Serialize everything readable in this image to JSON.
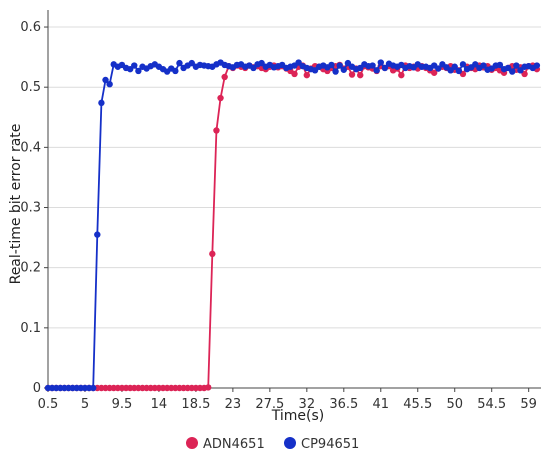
{
  "chart_data": {
    "type": "line",
    "xlabel": "Time(s)",
    "ylabel": "Real-time bit error rate",
    "xlim": [
      0.5,
      60.5
    ],
    "ylim": [
      0,
      0.62
    ],
    "x_tick_labels": [
      "0.5",
      "5",
      "9.5",
      "14",
      "18.5",
      "23",
      "27.5",
      "32",
      "36.5",
      "41",
      "45.5",
      "50",
      "54.5",
      "59"
    ],
    "y_tick_labels": [
      "0",
      "0.1",
      "0.2",
      "0.3",
      "0.4",
      "0.5",
      "0.6"
    ],
    "legend": "bottom",
    "grid": "horizontal",
    "series": [
      {
        "name": "ADN4651",
        "color": "#dc2456",
        "x": [
          0.5,
          1.0,
          1.5,
          2.0,
          2.5,
          3.0,
          3.5,
          4.0,
          4.5,
          5.0,
          5.5,
          6.0,
          6.5,
          7.0,
          7.5,
          8.0,
          8.5,
          9.0,
          9.5,
          10.0,
          10.5,
          11.0,
          11.5,
          12.0,
          12.5,
          13.0,
          13.5,
          14.0,
          14.5,
          15.0,
          15.5,
          16.0,
          16.5,
          17.0,
          17.5,
          18.0,
          18.5,
          19.0,
          19.5,
          20.0,
          20.5,
          21.0,
          21.5,
          22.0,
          22.5,
          23.0,
          23.5,
          24.0,
          24.5,
          25.0,
          25.5,
          26.0,
          26.5,
          27.0,
          27.5,
          28.0,
          28.5,
          29.0,
          29.5,
          30.0,
          30.5,
          31.0,
          31.5,
          32.0,
          32.5,
          33.0,
          33.5,
          34.0,
          34.5,
          35.0,
          35.5,
          36.0,
          36.5,
          37.0,
          37.5,
          38.0,
          38.5,
          39.0,
          39.5,
          40.0,
          40.5,
          41.0,
          41.5,
          42.0,
          42.5,
          43.0,
          43.5,
          44.0,
          44.5,
          45.0,
          45.5,
          46.0,
          46.5,
          47.0,
          47.5,
          48.0,
          48.5,
          49.0,
          49.5,
          50.0,
          50.5,
          51.0,
          51.5,
          52.0,
          52.5,
          53.0,
          53.5,
          54.0,
          54.5,
          55.0,
          55.5,
          56.0,
          56.5,
          57.0,
          57.5,
          58.0,
          58.5,
          59.0,
          59.5,
          60.0
        ],
        "y": [
          0,
          0,
          0,
          0,
          0,
          0,
          0,
          0,
          0,
          0,
          0,
          0,
          0,
          0,
          0,
          0,
          0,
          0,
          0,
          0,
          0,
          0,
          0,
          0,
          0,
          0,
          0,
          0,
          0,
          0,
          0,
          0,
          0,
          0,
          0,
          0,
          0,
          0,
          0,
          0.001,
          0.223,
          0.428,
          0.482,
          0.517,
          0.535,
          0.532,
          0.536,
          0.534,
          0.532,
          0.536,
          0.533,
          0.535,
          0.532,
          0.53,
          0.534,
          0.536,
          0.533,
          0.535,
          0.531,
          0.527,
          0.522,
          0.534,
          0.536,
          0.52,
          0.531,
          0.535,
          0.534,
          0.53,
          0.527,
          0.532,
          0.535,
          0.537,
          0.531,
          0.534,
          0.521,
          0.531,
          0.52,
          0.535,
          0.533,
          0.531,
          0.527,
          0.535,
          0.532,
          0.535,
          0.528,
          0.531,
          0.52,
          0.536,
          0.532,
          0.534,
          0.531,
          0.535,
          0.532,
          0.528,
          0.524,
          0.531,
          0.534,
          0.532,
          0.535,
          0.529,
          0.528,
          0.522,
          0.534,
          0.532,
          0.53,
          0.536,
          0.533,
          0.535,
          0.529,
          0.532,
          0.528,
          0.524,
          0.532,
          0.535,
          0.529,
          0.533,
          0.522,
          0.535,
          0.536,
          0.53
        ]
      },
      {
        "name": "CP94651",
        "color": "#1530c8",
        "x": [
          0.5,
          1.0,
          1.5,
          2.0,
          2.5,
          3.0,
          3.5,
          4.0,
          4.5,
          5.0,
          5.5,
          6.0,
          6.5,
          7.0,
          7.5,
          8.0,
          8.5,
          9.0,
          9.5,
          10.0,
          10.5,
          11.0,
          11.5,
          12.0,
          12.5,
          13.0,
          13.5,
          14.0,
          14.5,
          15.0,
          15.5,
          16.0,
          16.5,
          17.0,
          17.5,
          18.0,
          18.5,
          19.0,
          19.5,
          20.0,
          20.5,
          21.0,
          21.5,
          22.0,
          22.5,
          23.0,
          23.5,
          24.0,
          24.5,
          25.0,
          25.5,
          26.0,
          26.5,
          27.0,
          27.5,
          28.0,
          28.5,
          29.0,
          29.5,
          30.0,
          30.5,
          31.0,
          31.5,
          32.0,
          32.5,
          33.0,
          33.5,
          34.0,
          34.5,
          35.0,
          35.5,
          36.0,
          36.5,
          37.0,
          37.5,
          38.0,
          38.5,
          39.0,
          39.5,
          40.0,
          40.5,
          41.0,
          41.5,
          42.0,
          42.5,
          43.0,
          43.5,
          44.0,
          44.5,
          45.0,
          45.5,
          46.0,
          46.5,
          47.0,
          47.5,
          48.0,
          48.5,
          49.0,
          49.5,
          50.0,
          50.5,
          51.0,
          51.5,
          52.0,
          52.5,
          53.0,
          53.5,
          54.0,
          54.5,
          55.0,
          55.5,
          56.0,
          56.5,
          57.0,
          57.5,
          58.0,
          58.5,
          59.0,
          59.5,
          60.0
        ],
        "y": [
          0,
          0,
          0,
          0,
          0,
          0,
          0,
          0,
          0,
          0,
          0,
          0,
          0.255,
          0.474,
          0.512,
          0.505,
          0.538,
          0.534,
          0.537,
          0.532,
          0.53,
          0.536,
          0.527,
          0.534,
          0.531,
          0.535,
          0.538,
          0.534,
          0.53,
          0.526,
          0.531,
          0.527,
          0.54,
          0.532,
          0.536,
          0.54,
          0.534,
          0.537,
          0.536,
          0.535,
          0.534,
          0.538,
          0.541,
          0.537,
          0.535,
          0.533,
          0.537,
          0.538,
          0.534,
          0.536,
          0.532,
          0.538,
          0.54,
          0.534,
          0.537,
          0.533,
          0.535,
          0.537,
          0.532,
          0.534,
          0.536,
          0.541,
          0.535,
          0.532,
          0.53,
          0.528,
          0.534,
          0.536,
          0.533,
          0.537,
          0.526,
          0.536,
          0.529,
          0.54,
          0.534,
          0.53,
          0.532,
          0.538,
          0.535,
          0.536,
          0.528,
          0.541,
          0.532,
          0.539,
          0.536,
          0.534,
          0.537,
          0.532,
          0.535,
          0.533,
          0.538,
          0.534,
          0.534,
          0.532,
          0.536,
          0.531,
          0.538,
          0.533,
          0.528,
          0.534,
          0.527,
          0.538,
          0.53,
          0.533,
          0.538,
          0.532,
          0.536,
          0.529,
          0.531,
          0.536,
          0.537,
          0.53,
          0.532,
          0.526,
          0.536,
          0.528,
          0.534,
          0.535,
          0.532,
          0.536
        ]
      }
    ]
  }
}
